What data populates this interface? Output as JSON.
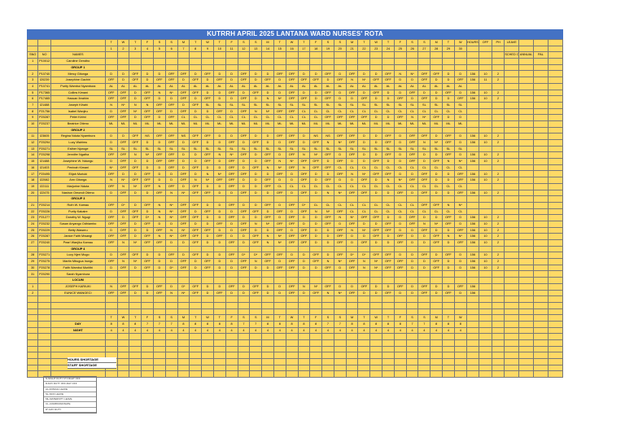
{
  "title": "KUTRRH APRIL 2025 LANTANA WARD NURSES' ROTA",
  "header_labels": {
    "sno": "SNO",
    "num": "NO",
    "names": "NAMES",
    "hours": "HOURS",
    "off": "OFF",
    "ph": "PH",
    "leave": "LEAVE",
    "leave_sub": "SCHED OFF",
    "annual": "ANNUAL",
    "pal": "PAL"
  },
  "day_letters": [
    "T",
    "W",
    "T",
    "F",
    "S",
    "S",
    "M",
    "T",
    "W",
    "T",
    "F",
    "S",
    "S",
    "M",
    "T",
    "W",
    "T",
    "F",
    "S",
    "S",
    "M",
    "T",
    "W",
    "T",
    "F",
    "S",
    "S",
    "M",
    "T",
    "W"
  ],
  "dates": [
    "1",
    "2",
    "3",
    "4",
    "5",
    "6",
    "7",
    "8",
    "9",
    "10",
    "11",
    "12",
    "13",
    "14",
    "15",
    "16",
    "17",
    "18",
    "19",
    "20",
    "21",
    "22",
    "23",
    "24",
    "25",
    "26",
    "27",
    "28",
    "29",
    "30"
  ],
  "groups": [
    {
      "label": "",
      "rows": [
        {
          "no": "1",
          "code": "P10012",
          "name": "Caroline Gendho",
          "cells": "",
          "hours": "",
          "off": "",
          "ph": "",
          "color": "green"
        }
      ]
    },
    {
      "label": "GROUP 1",
      "rows": [
        {
          "no": "2",
          "code": "P10740",
          "name": "Mercy Gitonga",
          "cells": "D,D,OFF,D,D,OFF,OFF,D,OFF,D,D,OFF,D,D,OFF,OFF,D,D,OFF,D,OFF,D,D,OFF,N,N*,OFF,OFF,D,D",
          "hours": "156",
          "off": "10",
          "ph": "2",
          "color": "green"
        },
        {
          "no": "3",
          "code": "I20239",
          "name": "Josephine Gachiri",
          "cells": "OFF,D,OFF,D,OFF,OFF,D,OFF,D,OFF,D,OFF,D,OFF,D,OFF,OFF,OFF,D,OFF,N,N*,OFF,OFF,D,D,OFF,D,D,OFF",
          "hours": "156",
          "off": "11",
          "ph": "2",
          "color": "green"
        },
        {
          "no": "4",
          "code": "P10741",
          "name": "Purity Wambui Nyambura",
          "cells": "AL,AL,AL,AL,AL,AL,AL,AL,AL,AL,AL,AL,AL,AL,AL,AL,AL,AL,AL,AL,AL,AL,AL,AL,AL,AL,AL,AL,AL,AL",
          "hours": "",
          "off": "",
          "ph": "",
          "color": "green"
        },
        {
          "no": "5",
          "code": "P17365",
          "name": "Collins Kimani",
          "cells": "OFF,OFF,D,OFF,N,N*,OFF,OFF,D,D,OFF,D,OFF,D,D,OFF,D,D,OFF,D,OFF,D,OFF,D,D,OFF,D,D,OFF,D",
          "hours": "156",
          "off": "10",
          "ph": "2",
          "color": "green"
        },
        {
          "no": "6",
          "code": "P17465",
          "name": "Hassan Ibrahim",
          "cells": "OFF,OFF,D,OFF,D,D,OFF,D,OFF,D,D,OFF,D,N,N*,OFF,OFF,D,OFF,D,D,OFF,D,D,OFF,D,OFF,D,D,OFF",
          "hours": "156",
          "off": "10",
          "ph": "2",
          "color": "green"
        },
        {
          "no": "7",
          "code": "I21488",
          "name": "Joseph Kihahi",
          "cells": "N,N*,N,N,OFF,OFF,D,OFF,SL,SL,SL,SL,SL,SL,SL,SL,SL,SL,SL,SL,SL,SL,SL,SL,SL,SL,SL,SL,SL,SL",
          "hours": "",
          "off": "",
          "ph": "",
          "color": "green"
        },
        {
          "no": "8",
          "code": "P21756",
          "name": "Isabel Wanjiru",
          "cells": "D,OFF,N*,OFF,OFF,D,OFF,D,D,OFF,D,OFF,N,N*,OFF,OFF,CL,CL,CL,CL,CL,CL,CL,CL,CL,CL,CL,CL,CL,CL",
          "hours": "",
          "off": "",
          "ph": "",
          "color": "green"
        },
        {
          "no": "9",
          "code": "P20287",
          "name": "Peter Kirimi",
          "cells": "OFF,OFF,D,OFF,D,OFF,CL,CL,CL,CL,CL,CL,CL,CL,CL,CL,CL,CL,OFF,OFF,OFF,OFF,D,D,OFF,N,N*,OFF,D,D",
          "hours": "",
          "off": "",
          "ph": "",
          "color": "green"
        },
        {
          "no": "10",
          "code": "P20237",
          "name": "Beatrice Otieno",
          "cells": "ML,ML,ML,ML,ML,ML,ML,ML,ML,ML,ML,ML,ML,ML,ML,ML,ML,ML,ML,ML,ML,ML,ML,ML,ML,ML,ML,ML,ML,ML",
          "hours": "",
          "off": "",
          "ph": "",
          "color": "green"
        }
      ]
    },
    {
      "label": "GROUP 2",
      "rows": [
        {
          "no": "11",
          "code": "I23605",
          "name": "Regina Nduta Nyambura",
          "cells": "D,D,OFF,NS,OFF,OFF,NS,OFF,OFF,D,D,OFF,D,D,OFF,OFF,D,NS,NS,OFF,OFF,D,D,OFF,D,OFF,OFF,D,OFF,D",
          "hours": "156",
          "off": "10",
          "ph": "2",
          "color": "green"
        },
        {
          "no": "12",
          "code": "P20294",
          "name": "Lucy Wairimu",
          "cells": "D,OFF,OFF,D,D,OFF,D,OFF,D,D,OFF,D,OFF,D,D,OFF,D,OFF,N,N*,OFF,D,D,OFF,D,OFF,N,N*,OFF,D",
          "hours": "156",
          "off": "10",
          "ph": "2",
          "color": "green"
        },
        {
          "no": "13",
          "code": "P20271",
          "name": "Esther Njoroge",
          "cells": "SL,SL,SL,SL,SL,SL,SL,SL,SL,SL,SL,SL,SL,SL,SL,SL,SL,SL,SL,SL,SL,SL,SL,SL,SL,SL,SL,SL,SL,SL",
          "hours": "",
          "off": "",
          "ph": "",
          "color": "green"
        },
        {
          "no": "14",
          "code": "P20298",
          "name": "Jennifer Ngatha",
          "cells": "OFF,OFF,N,N*,OFF,OFF,D,D,OFF,N,N*,OFF,D,OFF,D,OFF,N,N*,OFF,D,OFF,D,D,OFF,D,OFF,D,D,OFF,D",
          "hours": "156",
          "off": "10",
          "ph": "2",
          "color": "green"
        },
        {
          "no": "15",
          "code": "I21488",
          "name": "Josephine W. Ndungu",
          "cells": "D,OFF,D,D,OFF,OFF,D,D,OFF,D,OFF,D,D,OFF,N,N*,OFF,OFF,D,OFF,D,D,OFF,D,D,OFF,D,OFF,N,N*",
          "hours": "156",
          "off": "10",
          "ph": "2",
          "color": "green"
        },
        {
          "no": "16",
          "code": "I21403",
          "name": "Peninah Kimani",
          "cells": "N*,OFF,OFF,D,D,OFF,D,OFF,D,D,OFF,D,OFF,N,N*,OFF,N,OFF,OFF,CL,CL,CL,CL,CL,CL,CL,CL,CL,CL,CL",
          "hours": "",
          "off": "",
          "ph": "",
          "color": "green"
        },
        {
          "no": "17",
          "code": "P20495",
          "name": "Elijah Muriuki",
          "cells": "OFF,D,D,OFF,D,D,OFF,D,N,N*,OFF,OFF,D,D,OFF,D,OFF,D,D,OFF,N,N*,OFF,OFF,D,D,OFF,D,D,OFF",
          "hours": "156",
          "off": "10",
          "ph": "2",
          "color": "green"
        },
        {
          "no": "18",
          "code": "I22082",
          "name": "Ann Gitonga",
          "cells": "N,N*,OFF,OFF,D,D,OFF,N,N*,OFF,OFF,D,D,OFF,D,D,OFF,D,OFF,D,D,OFF,D,N,N*,OFF,OFF,D,D,OFF",
          "hours": "156",
          "off": "10",
          "ph": "2",
          "color": "green"
        },
        {
          "no": "19",
          "code": "I22111",
          "name": "Marjorine Nduta",
          "cells": "OFF,N,N*,OFF,N,OFF,D,OFF,D,D,OFF,D,D,OFF,CL,CL,CL,CL,CL,CL,CL,CL,CL,CL,CL,CL,CL,CL,CL,CL",
          "hours": "",
          "off": "",
          "ph": "",
          "color": "green"
        },
        {
          "no": "20",
          "code": "I22475",
          "name": "Nashon Omondi Otieno",
          "cells": "D,OFF,D,D,OFF,N,N*,OFF,OFF,D,D,OFF,D,D,OFF,D,OFF,D,N,N*,OFF,OFF,D,D,OFF,D,OFF,D,D,OFF",
          "hours": "156",
          "off": "10",
          "ph": "2",
          "color": "ltblue"
        }
      ]
    },
    {
      "label": "GROUP 3",
      "rows": [
        {
          "no": "21",
          "code": "P20214",
          "name": "Ruth W. Kamau",
          "cells": "OFF,D*,D,OFF,N,N*,OFF,OFF,D,D,OFF,D,D,OFF,D,OFF,D*,CL,CL,CL,CL,CL,CL,CL,CL,CL,OFF,OFF,N,N*",
          "hours": "",
          "off": "",
          "ph": "",
          "color": "green"
        },
        {
          "no": "22",
          "code": "P20226",
          "name": "Purity Kakaire",
          "cells": "D,OFF,OFF,D,N,N*,OFF,D,OFF,D,D,OFF,OFF,D,OFF,D,OFF,N,N*,OFF,CL,CL,CL,CL,CL,CL,CL,CL,CL,CL",
          "hours": "",
          "off": "",
          "ph": "",
          "color": "green"
        },
        {
          "no": "23",
          "code": "P21277",
          "name": "Dorothy W. Ngugi",
          "cells": "OFF,D,OFF,D*,N,N*,OFF,OFF,D,D,OFF,D,D,OFF,D,OFF,D,D,OFF,N,N*,OFF,OFF,D,D,OFF,D,D,OFF,D",
          "hours": "156",
          "off": "10",
          "ph": "2",
          "color": "green"
        },
        {
          "no": "24",
          "code": "P20232",
          "name": "Susan Anyango Odhiambo",
          "cells": "OFF,OFF,D,OFF,D,D,OFF,D,D,OFF,D,OFF,N,N*,OFF,OFF,D,D,OFF,D,OFF,D,D,OFF,D,OFF,N,N*,OFF,D",
          "hours": "156",
          "off": "10",
          "ph": "2",
          "color": "green"
        },
        {
          "no": "25",
          "code": "P20229",
          "name": "Betty Waweru",
          "cells": "D,OFF,D,D,OFF,N,N*,OFF,OFF,D,D,OFF,D,D,OFF,D,OFF,D,D,OFF,N,N*,OFF,OFF,D,D,OFF,D,D,OFF",
          "hours": "156",
          "off": "10",
          "ph": "2",
          "color": "green"
        },
        {
          "no": "26",
          "code": "P20287",
          "name": "Janice Faith Mwangi",
          "cells": "OFF,OFF,D,OFF,N,N*,OFF,OFF,D,OFF,D,D,OFF,N,N*,OFF,OFF,D,D,OFF,D,D,OFF,D,OFF,D,D,OFF,N,N*",
          "hours": "156",
          "off": "10",
          "ph": "2",
          "color": "green"
        },
        {
          "no": "27",
          "code": "P20240",
          "name": "Pearl Wanjiku Kamau",
          "cells": "OFF,N,N*,OFF,OFF,D,D,OFF,D,D,OFF,D,OFF,N,N*,OFF,OFF,D,D,OFF,D,OFF,D,D,OFF,D,D,OFF,D,OFF",
          "hours": "156",
          "off": "10",
          "ph": "2",
          "color": "green"
        }
      ]
    },
    {
      "label": "GROUP 4",
      "rows": [
        {
          "no": "28",
          "code": "P20271",
          "name": "Lucy Njeri Mugo",
          "cells": "D,OFF,OFF,D,D,OFF,D,OFF,D,D,OFF,D*,D*,OFF,OFF,D,D,OFF,D,OFF,D*,D*,OFF,OFF,D,D,OFF,D,OFF,D",
          "hours": "156",
          "off": "10",
          "ph": "2",
          "color": "green"
        },
        {
          "no": "29",
          "code": "P20275",
          "name": "Martin Mbugua Irungu",
          "cells": "OFF,N,N*,OFF,D,D,OFF,D,OFF,D,D,OFF,N,OFF,D,OFF,D,OFF,N,N*,OFF,N,N*,OFF,OFF,D,D,OFF,D,D",
          "hours": "156",
          "off": "10",
          "ph": "2",
          "color": "green"
        },
        {
          "no": "30",
          "code": "P20278",
          "name": "Faith Wambui Muriithi",
          "cells": "D,OFF,D,OFF,D,D*,OFF,D,OFF,D,D,OFF,D,D,OFF,OFF,D,D,OFF,D,OFF,N,N*,OFF,OFF,D,D,OFF,D,D",
          "hours": "156",
          "off": "10",
          "ph": "2",
          "color": "green"
        },
        {
          "no": "31",
          "code": "P20290",
          "name": "Sarah Nyambura",
          "cells": "",
          "hours": "",
          "off": "",
          "ph": "",
          "color": "ltblue"
        }
      ]
    },
    {
      "label": "LOCUM",
      "rows": [
        {
          "no": "1",
          "code": "",
          "name": "JOSEPH KARIUKI",
          "cells": "N,OFF,OFF,D,OFF,D,D*,OFF,D,D,OFF,D,OFF,D,D,OFF,N,N*,OFF,D,D,OFF,D,D,OFF,D,OFF,D,D,OFF",
          "hours": "156",
          "off": "",
          "ph": "",
          "color": "yellow"
        },
        {
          "no": "2",
          "code": "",
          "name": "EUNICE WANGECI",
          "cells": "OFF,OFF,D,D,OFF,N,N*,OFF,D,OFF,D,D,OFF,D,D,OFF,D,OFF,N,N*,OFF,D,D,OFF,D,D,OFF,D,OFF,D",
          "hours": "156",
          "off": "",
          "ph": "",
          "color": "yellow"
        }
      ]
    }
  ],
  "tallies": {
    "day_label": "DAY",
    "night_label": "NIGHT",
    "day_counts": [
      "8",
      "8",
      "8",
      "7",
      "7",
      "7",
      "8",
      "8",
      "8",
      "8",
      "8",
      "7",
      "7",
      "8",
      "8",
      "8",
      "8",
      "8",
      "7",
      "7",
      "8",
      "8",
      "8",
      "8",
      "8",
      "7",
      "7",
      "8",
      "8",
      "8"
    ],
    "night_counts": [
      "4",
      "4",
      "4",
      "4",
      "4",
      "4",
      "4",
      "4",
      "4",
      "4",
      "4",
      "4",
      "4",
      "4",
      "4",
      "4",
      "4",
      "4",
      "4",
      "4",
      "4",
      "4",
      "4",
      "4",
      "4",
      "4",
      "4",
      "4",
      "4",
      "4"
    ]
  },
  "summary": {
    "hours_shortage": "HOURS SHORTAGE",
    "staff_shortage": "STAFF SHORTAGE"
  },
  "legend": [
    "N-NIGHT DUTY   N*-NIGHT OFF",
    "D-DAY DUTY   OFF-DAY OFF",
    "AL-ANNUAL LEAVE",
    "SL-SICK LEAVE",
    "ML-MATERNITY LEAVE",
    "CL-COMPASSIONATE",
    "D*-DAY DUTY"
  ],
  "colors": {
    "header": "#4472c4",
    "sheet": "#ffd966",
    "weekend": "#2e75b6",
    "pink": "#ff3399",
    "name_green": "#c6e0b4"
  }
}
